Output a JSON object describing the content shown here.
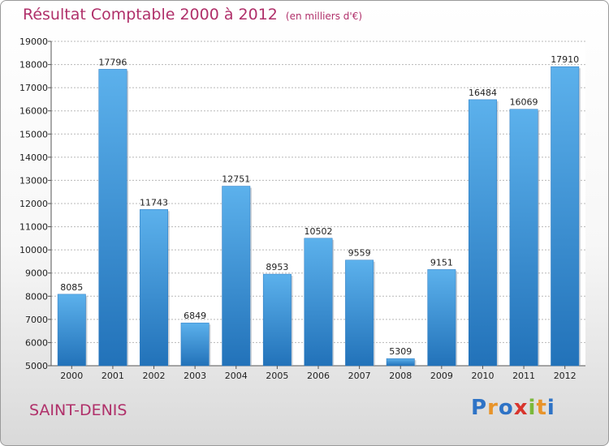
{
  "chart_data": {
    "type": "bar",
    "title": "Résultat Comptable 2000 à 2012",
    "subtitle": "(en milliers d'€)",
    "categories": [
      "2000",
      "2001",
      "2002",
      "2003",
      "2004",
      "2005",
      "2006",
      "2007",
      "2008",
      "2009",
      "2010",
      "2011",
      "2012"
    ],
    "values": [
      8085,
      17796,
      11743,
      6849,
      12751,
      8953,
      10502,
      9559,
      5309,
      9151,
      16484,
      16069,
      17910
    ],
    "ylim": [
      5000,
      19000
    ],
    "yticks": [
      5000,
      6000,
      7000,
      8000,
      9000,
      10000,
      11000,
      12000,
      13000,
      14000,
      15000,
      16000,
      17000,
      18000,
      19000
    ],
    "grid": true,
    "bar_color": "#3a8fd8"
  },
  "footer": {
    "city": "SAINT-DENIS",
    "logo_letters": [
      "P",
      "r",
      "o",
      "x",
      "i",
      "t",
      "i"
    ],
    "logo_colors": [
      "#2e73c6",
      "#e8942a",
      "#2e73c6",
      "#d8352d",
      "#7ab83a",
      "#e8942a",
      "#2e73c6"
    ]
  }
}
